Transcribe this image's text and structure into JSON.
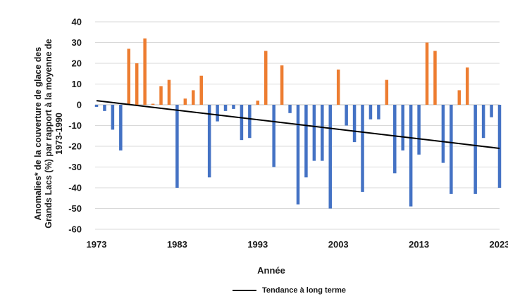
{
  "chart_data": {
    "type": "bar",
    "title": "",
    "xlabel": "Année",
    "ylabel": "Anomalies* de la couverture de glace des Grands Lacs (%) par rapport à la moyenne de 1973-1990",
    "ylim": [
      -60,
      40
    ],
    "yticks": [
      40,
      30,
      20,
      10,
      0,
      -10,
      -20,
      -30,
      -40,
      -50,
      -60
    ],
    "xticks": [
      "1973",
      "1983",
      "1993",
      "2003",
      "2013",
      "2023"
    ],
    "grid": true,
    "legend_position": "bottom",
    "colors": {
      "positive": "#ED7D31",
      "negative": "#4472C4",
      "trend": "#000000",
      "grid": "#d9d9d9"
    },
    "x": [
      1973,
      1974,
      1975,
      1976,
      1977,
      1978,
      1979,
      1980,
      1981,
      1982,
      1983,
      1984,
      1985,
      1986,
      1987,
      1988,
      1989,
      1990,
      1991,
      1992,
      1993,
      1994,
      1995,
      1996,
      1997,
      1998,
      1999,
      2000,
      2001,
      2002,
      2003,
      2004,
      2005,
      2006,
      2007,
      2008,
      2009,
      2010,
      2011,
      2012,
      2013,
      2014,
      2015,
      2016,
      2017,
      2018,
      2019,
      2020,
      2021,
      2022,
      2023
    ],
    "values": [
      -1,
      -3,
      -12,
      -22,
      27,
      20,
      32,
      0.5,
      9,
      12,
      -40,
      3,
      7,
      14,
      -35,
      -8,
      -3,
      -2,
      -17,
      -16,
      2,
      26,
      -30,
      19,
      -4,
      -48,
      -35,
      -27,
      -27,
      -50,
      17,
      -10,
      -18,
      -42,
      -7,
      -7,
      12,
      -33,
      -22,
      -49,
      -24,
      30,
      26,
      -28,
      -43,
      7,
      18,
      -43,
      -16,
      -6,
      -40
    ],
    "trend": {
      "name": "Tendance à long terme",
      "start": [
        1973,
        2
      ],
      "end": [
        2023,
        -21
      ]
    }
  }
}
